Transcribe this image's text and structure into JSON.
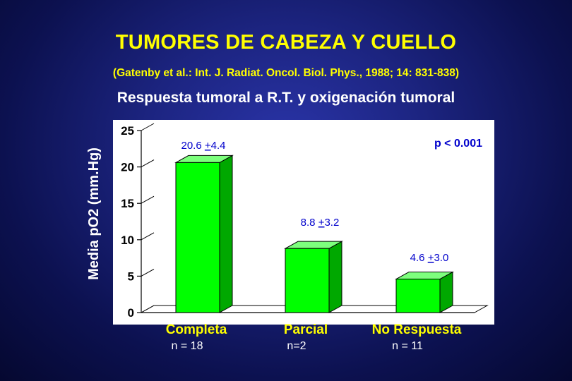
{
  "title": "TUMORES DE CABEZA Y CUELLO",
  "citation": "(Gatenby et al.:  Int. J. Radiat. Oncol. Biol. Phys., 1988; 14: 831-838)",
  "subtitle": "Respuesta tumoral a R.T. y oxigenación tumoral",
  "colors": {
    "bar_front": "#00ff00",
    "bar_top": "#7dff7d",
    "bar_side": "#00a800",
    "chart_bg": "#ffffff",
    "title": "#ffff00",
    "annotation": "#0000cc",
    "category_label": "#ffff00"
  },
  "chart_data": {
    "type": "bar",
    "ylabel": "Media pO2 (mm.Hg)",
    "xlabel": "",
    "ylim": [
      0,
      25
    ],
    "yticks": [
      "0",
      "5",
      "10",
      "15",
      "20",
      "25"
    ],
    "grid": false,
    "categories": [
      "Completa",
      "Parcial",
      "No Respuesta"
    ],
    "values": [
      20.6,
      8.8,
      4.6
    ],
    "value_labels": [
      "20.6 +4.4",
      "8.8 +3.2",
      "4.6 +3.0"
    ],
    "sample_sizes": [
      "n = 18",
      "n=2",
      "n = 11"
    ],
    "significance": "p < 0.001"
  }
}
